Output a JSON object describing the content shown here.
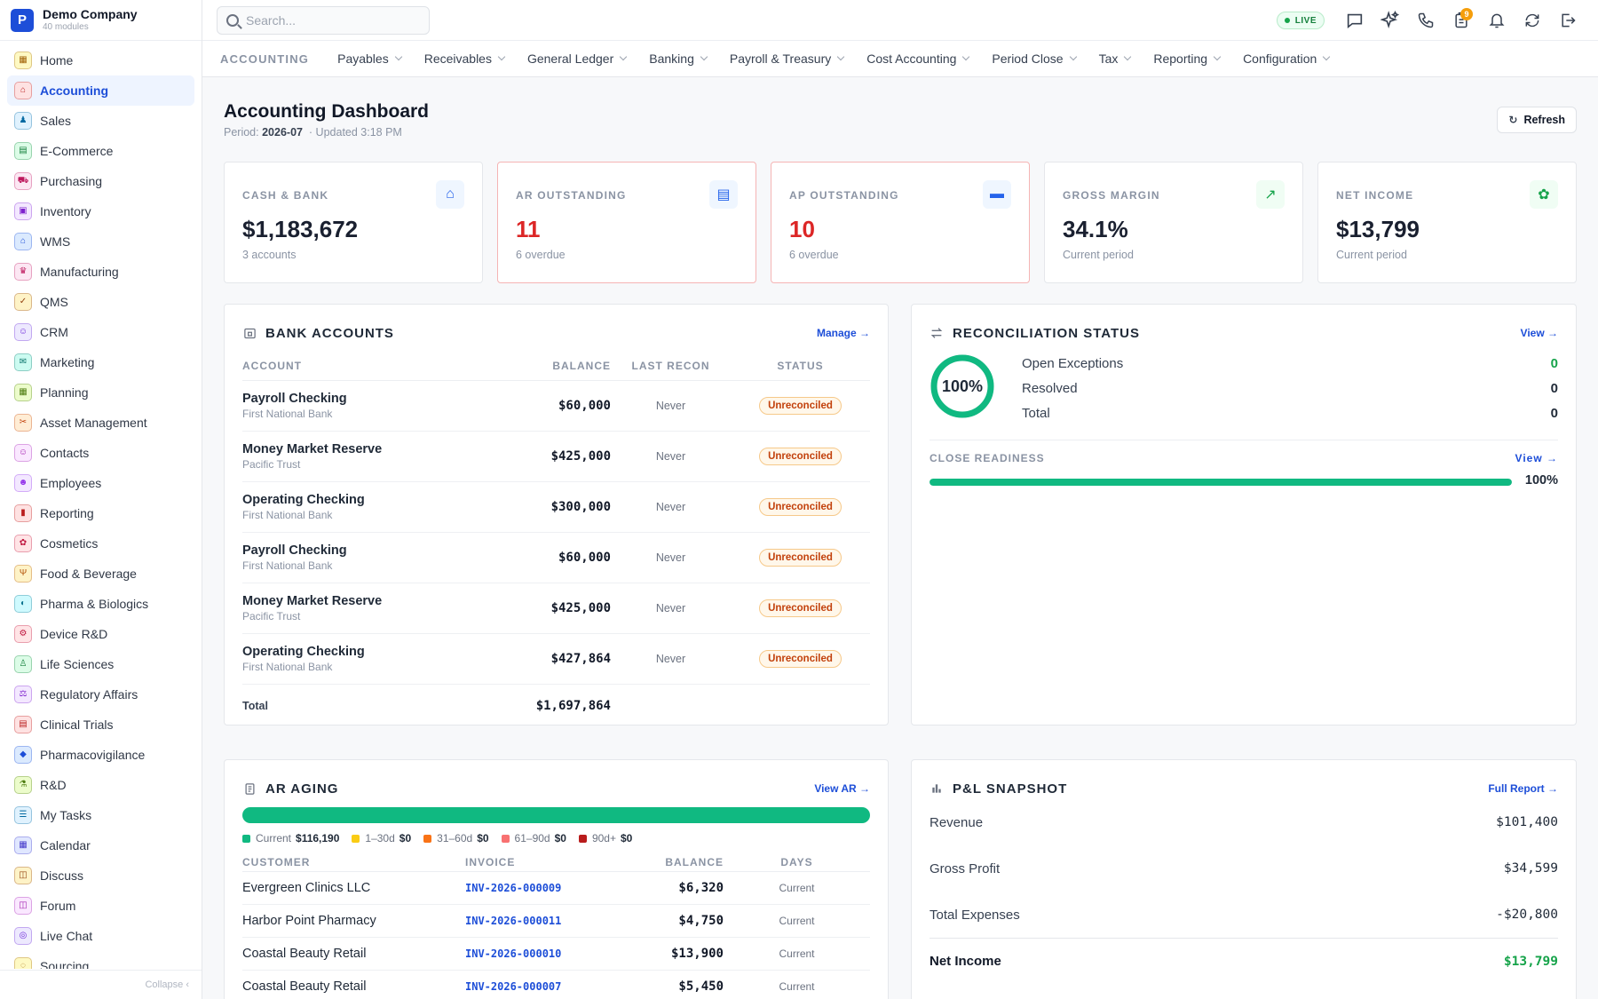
{
  "app": {
    "company": "Demo Company",
    "modules_count": "40 modules",
    "logo_letter": "P"
  },
  "sidebar": {
    "items": [
      {
        "label": "Home",
        "icon": "home-icon",
        "color": "#a16207",
        "bg": "#fef9c3"
      },
      {
        "label": "Accounting",
        "icon": "bank-icon",
        "color": "#b91c1c",
        "bg": "#fee2e2",
        "active": true
      },
      {
        "label": "Sales",
        "icon": "sales-icon",
        "color": "#0369a1",
        "bg": "#e0f2fe"
      },
      {
        "label": "E-Commerce",
        "icon": "store-icon",
        "color": "#15803d",
        "bg": "#dcfce7"
      },
      {
        "label": "Purchasing",
        "icon": "cart-icon",
        "color": "#be185d",
        "bg": "#fce7f3"
      },
      {
        "label": "Inventory",
        "icon": "box-icon",
        "color": "#7e22ce",
        "bg": "#f3e8ff"
      },
      {
        "label": "WMS",
        "icon": "warehouse-icon",
        "color": "#1d4ed8",
        "bg": "#dbeafe"
      },
      {
        "label": "Manufacturing",
        "icon": "factory-icon",
        "color": "#be185d",
        "bg": "#fce7f3"
      },
      {
        "label": "QMS",
        "icon": "badge-check-icon",
        "color": "#92400e",
        "bg": "#fef3c7"
      },
      {
        "label": "CRM",
        "icon": "users-icon",
        "color": "#6d28d9",
        "bg": "#ede9fe"
      },
      {
        "label": "Marketing",
        "icon": "megaphone-icon",
        "color": "#0f766e",
        "bg": "#ccfbf1"
      },
      {
        "label": "Planning",
        "icon": "calendar-check-icon",
        "color": "#4d7c0f",
        "bg": "#ecfccb"
      },
      {
        "label": "Asset Management",
        "icon": "tools-icon",
        "color": "#c2410c",
        "bg": "#ffedd5"
      },
      {
        "label": "Contacts",
        "icon": "contact-icon",
        "color": "#a21caf",
        "bg": "#fae8ff"
      },
      {
        "label": "Employees",
        "icon": "employee-icon",
        "color": "#9333ea",
        "bg": "#f3e8ff"
      },
      {
        "label": "Reporting",
        "icon": "bar-chart-icon",
        "color": "#b91c1c",
        "bg": "#fee2e2"
      },
      {
        "label": "Cosmetics",
        "icon": "cosmetics-icon",
        "color": "#be123c",
        "bg": "#ffe4e6"
      },
      {
        "label": "Food & Beverage",
        "icon": "utensils-icon",
        "color": "#b45309",
        "bg": "#fef3c7"
      },
      {
        "label": "Pharma & Biologics",
        "icon": "pill-icon",
        "color": "#0e7490",
        "bg": "#cffafe"
      },
      {
        "label": "Device R&D",
        "icon": "device-icon",
        "color": "#be123c",
        "bg": "#ffe4e6"
      },
      {
        "label": "Life Sciences",
        "icon": "microscope-icon",
        "color": "#15803d",
        "bg": "#dcfce7"
      },
      {
        "label": "Regulatory Affairs",
        "icon": "gavel-icon",
        "color": "#7e22ce",
        "bg": "#f3e8ff"
      },
      {
        "label": "Clinical Trials",
        "icon": "clipboard-icon",
        "color": "#b91c1c",
        "bg": "#fee2e2"
      },
      {
        "label": "Pharmacovigilance",
        "icon": "shield-icon",
        "color": "#1d4ed8",
        "bg": "#dbeafe"
      },
      {
        "label": "R&D",
        "icon": "flask-icon",
        "color": "#4d7c0f",
        "bg": "#ecfccb"
      },
      {
        "label": "My Tasks",
        "icon": "tasks-icon",
        "color": "#0369a1",
        "bg": "#e0f2fe"
      },
      {
        "label": "Calendar",
        "icon": "calendar-icon",
        "color": "#4338ca",
        "bg": "#e0e7ff"
      },
      {
        "label": "Discuss",
        "icon": "discuss-icon",
        "color": "#92400e",
        "bg": "#fef3c7"
      },
      {
        "label": "Forum",
        "icon": "forum-icon",
        "color": "#a21caf",
        "bg": "#fae8ff"
      },
      {
        "label": "Live Chat",
        "icon": "headset-icon",
        "color": "#6d28d9",
        "bg": "#ede9fe"
      },
      {
        "label": "Sourcing",
        "icon": "sourcing-icon",
        "color": "#a16207",
        "bg": "#fef9c3"
      }
    ],
    "collapse_label": "Collapse ‹"
  },
  "topbar": {
    "search_placeholder": "Search...",
    "live_label": "LIVE",
    "notif_count": "9"
  },
  "modnav": {
    "title": "ACCOUNTING",
    "items": [
      "Payables",
      "Receivables",
      "General Ledger",
      "Banking",
      "Payroll & Treasury",
      "Cost Accounting",
      "Period Close",
      "Tax",
      "Reporting",
      "Configuration"
    ]
  },
  "page": {
    "title": "Accounting Dashboard",
    "period_label": "Period:",
    "period": "2026-07",
    "updated": "· Updated 3:18 PM",
    "refresh_label": "Refresh"
  },
  "kpis": [
    {
      "label": "CASH & BANK",
      "value": "$1,183,672",
      "sub": "3 accounts",
      "icon": "bank-icon",
      "warn": false,
      "color": "#2563eb",
      "bg": "#eff6ff"
    },
    {
      "label": "AR OUTSTANDING",
      "value": "11",
      "sub": "6 overdue",
      "icon": "receipt-icon",
      "warn": true,
      "color": "#2563eb",
      "bg": "#eff6ff"
    },
    {
      "label": "AP OUTSTANDING",
      "value": "10",
      "sub": "6 overdue",
      "icon": "money-icon",
      "warn": true,
      "color": "#2563eb",
      "bg": "#eff6ff"
    },
    {
      "label": "GROSS MARGIN",
      "value": "34.1%",
      "sub": "Current period",
      "icon": "trending-up-icon",
      "warn": false,
      "color": "#16a34a",
      "bg": "#f0fdf4"
    },
    {
      "label": "NET INCOME",
      "value": "$13,799",
      "sub": "Current period",
      "icon": "piggy-bank-icon",
      "warn": false,
      "color": "#16a34a",
      "bg": "#f0fdf4"
    }
  ],
  "bank": {
    "title": "BANK ACCOUNTS",
    "link": "Manage →",
    "headers": {
      "account": "ACCOUNT",
      "balance": "BALANCE",
      "last_recon": "LAST RECON",
      "status": "STATUS"
    },
    "rows": [
      {
        "name": "Payroll Checking",
        "bank": "First National Bank",
        "balance": "$60,000",
        "recon": "Never",
        "status": "Unreconciled"
      },
      {
        "name": "Money Market Reserve",
        "bank": "Pacific Trust",
        "balance": "$425,000",
        "recon": "Never",
        "status": "Unreconciled"
      },
      {
        "name": "Operating Checking",
        "bank": "First National Bank",
        "balance": "$300,000",
        "recon": "Never",
        "status": "Unreconciled"
      },
      {
        "name": "Payroll Checking",
        "bank": "First National Bank",
        "balance": "$60,000",
        "recon": "Never",
        "status": "Unreconciled"
      },
      {
        "name": "Money Market Reserve",
        "bank": "Pacific Trust",
        "balance": "$425,000",
        "recon": "Never",
        "status": "Unreconciled"
      },
      {
        "name": "Operating Checking",
        "bank": "First National Bank",
        "balance": "$427,864",
        "recon": "Never",
        "status": "Unreconciled"
      }
    ],
    "total_label": "Total",
    "total": "$1,697,864"
  },
  "recon": {
    "title": "RECONCILIATION STATUS",
    "link": "View →",
    "percent_label": "100%",
    "percent": 100,
    "rows": [
      {
        "label": "Open Exceptions",
        "value": "0",
        "green": true
      },
      {
        "label": "Resolved",
        "value": "0",
        "green": false
      },
      {
        "label": "Total",
        "value": "0",
        "green": false
      }
    ],
    "close_title": "CLOSE READINESS",
    "close_link": "View →",
    "close_pct_label": "100%",
    "close_pct": 100
  },
  "aging": {
    "title": "AR AGING",
    "link": "View AR →",
    "buckets": [
      {
        "label": "Current",
        "amount": "$116,190",
        "color": "#10b981",
        "share": 1
      },
      {
        "label": "1–30d",
        "amount": "$0",
        "color": "#facc15",
        "share": 0
      },
      {
        "label": "31–60d",
        "amount": "$0",
        "color": "#f97316",
        "share": 0
      },
      {
        "label": "61–90d",
        "amount": "$0",
        "color": "#f87171",
        "share": 0
      },
      {
        "label": "90d+",
        "amount": "$0",
        "color": "#b91c1c",
        "share": 0
      }
    ],
    "headers": {
      "customer": "CUSTOMER",
      "invoice": "INVOICE",
      "balance": "BALANCE",
      "days": "DAYS"
    },
    "rows": [
      {
        "customer": "Evergreen Clinics LLC",
        "invoice": "INV-2026-000009",
        "balance": "$6,320",
        "days": "Current"
      },
      {
        "customer": "Harbor Point Pharmacy",
        "invoice": "INV-2026-000011",
        "balance": "$4,750",
        "days": "Current"
      },
      {
        "customer": "Coastal Beauty Retail",
        "invoice": "INV-2026-000010",
        "balance": "$13,900",
        "days": "Current"
      },
      {
        "customer": "Coastal Beauty Retail",
        "invoice": "INV-2026-000007",
        "balance": "$5,450",
        "days": "Current"
      }
    ]
  },
  "pl": {
    "title": "P&L SNAPSHOT",
    "link": "Full Report →",
    "rows": [
      {
        "label": "Revenue",
        "value": "$101,400"
      },
      {
        "label": "Gross Profit",
        "value": "$34,599"
      },
      {
        "label": "Total Expenses",
        "value": "-$20,800"
      }
    ],
    "net_label": "Net Income",
    "net_value": "$13,799"
  }
}
